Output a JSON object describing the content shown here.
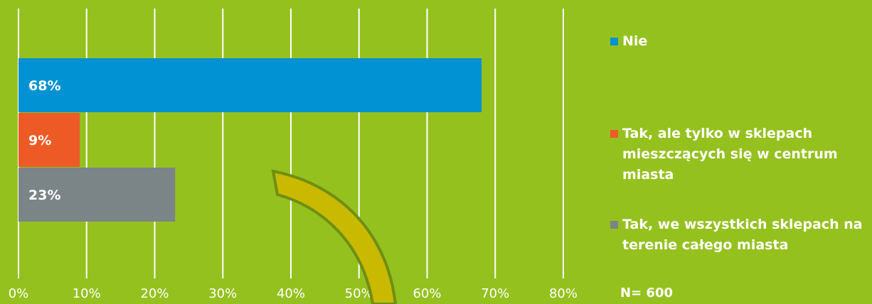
{
  "chart_data": {
    "type": "bar",
    "orientation": "horizontal",
    "categories": [
      "Nie",
      "Tak, ale tylko w sklepach mieszczących się w centrum miasta",
      "Tak, we wszystkich sklepach na terenie całego miasta"
    ],
    "values": [
      68,
      9,
      23
    ],
    "data_labels": [
      "68%",
      "9%",
      "23%"
    ],
    "colors": [
      "#0092d2",
      "#ee5a25",
      "#7b8487"
    ],
    "xlim": [
      0,
      80
    ],
    "xticks": [
      "0%",
      "10%",
      "20%",
      "30%",
      "40%",
      "50%",
      "60%",
      "70%",
      "80%"
    ],
    "grid": true,
    "legend": {
      "position": "right",
      "entries": [
        {
          "text": "Nie",
          "color": "#0092d2"
        },
        {
          "text": "Tak, ale tylko w sklepach mieszczących się w centrum miasta",
          "color": "#ee5a25"
        },
        {
          "text": "Tak, we wszystkich sklepach na terenie całego miasta",
          "color": "#7b8487"
        }
      ]
    },
    "title": "",
    "xlabel": "",
    "ylabel": ""
  },
  "annotation": {
    "sample_size": "N= 600"
  },
  "colors": {
    "background": "#95c11f",
    "gridline": "#ffffff",
    "arrow_fill": "#c9b900",
    "arrow_stroke": "#6e8f12"
  }
}
